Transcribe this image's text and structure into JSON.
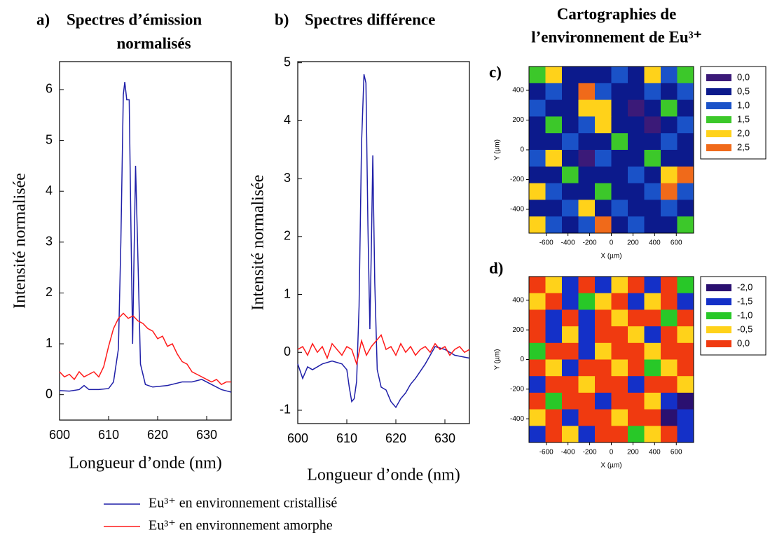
{
  "heading_lines": [
    "Cartographies de",
    "l’environnement de Eu³⁺"
  ],
  "chart_data": [
    {
      "type": "line",
      "label": "a)",
      "title_lines": [
        "Spectres d’émission",
        "normalisés"
      ],
      "xlabel": "Longueur d’onde (nm)",
      "ylabel": "Intensité normalisée",
      "xlim": [
        600,
        635
      ],
      "ylim": [
        -0.5,
        6.55
      ],
      "xticks": [
        600,
        610,
        620,
        630
      ],
      "yticks": [
        0,
        1,
        2,
        3,
        4,
        5,
        6
      ],
      "series": [
        {
          "name": "Eu³⁺ en environnement cristallisé",
          "color": "#1f1fa8",
          "x": [
            600,
            602,
            604,
            605,
            606,
            608,
            610,
            611,
            612,
            612.5,
            613,
            613.3,
            613.7,
            614.2,
            614.6,
            614.9,
            615.2,
            615.5,
            615.9,
            616.5,
            617.5,
            619,
            622,
            625,
            627,
            629,
            631,
            633,
            635
          ],
          "values": [
            0.08,
            0.07,
            0.1,
            0.18,
            0.1,
            0.1,
            0.12,
            0.25,
            0.9,
            3.0,
            5.9,
            6.15,
            5.8,
            5.8,
            3.0,
            1.0,
            2.8,
            4.5,
            3.0,
            0.6,
            0.2,
            0.15,
            0.18,
            0.25,
            0.25,
            0.3,
            0.2,
            0.1,
            0.05
          ]
        },
        {
          "name": "Eu³⁺ en environnement amorphe",
          "color": "#ff1a1a",
          "x": [
            600,
            601,
            602,
            603,
            604,
            605,
            606,
            607,
            608,
            609,
            610,
            611,
            612,
            613,
            614,
            615,
            616,
            617,
            618,
            619,
            620,
            621,
            622,
            623,
            624,
            625,
            626,
            627,
            628,
            629,
            630,
            631,
            632,
            633,
            634,
            635
          ],
          "values": [
            0.45,
            0.35,
            0.4,
            0.3,
            0.45,
            0.35,
            0.4,
            0.45,
            0.35,
            0.55,
            0.95,
            1.3,
            1.5,
            1.6,
            1.5,
            1.55,
            1.45,
            1.4,
            1.3,
            1.25,
            1.1,
            1.15,
            0.95,
            1.0,
            0.8,
            0.65,
            0.6,
            0.45,
            0.4,
            0.35,
            0.3,
            0.25,
            0.3,
            0.2,
            0.25,
            0.25
          ]
        }
      ]
    },
    {
      "type": "line",
      "label": "b)",
      "title_lines": [
        "Spectres différence"
      ],
      "xlabel": "Longueur d’onde (nm)",
      "ylabel": "Intensité normalisée",
      "xlim": [
        600,
        635
      ],
      "ylim": [
        -1.23,
        5.02
      ],
      "xticks": [
        600,
        610,
        620,
        630
      ],
      "yticks": [
        -1,
        0,
        1,
        2,
        3,
        4,
        5
      ],
      "series": [
        {
          "color": "#1f1fa8",
          "x": [
            600,
            601,
            602,
            603,
            605,
            607,
            609,
            610,
            610.5,
            611,
            611.5,
            612,
            612.5,
            613,
            613.5,
            613.9,
            614.3,
            614.7,
            615,
            615.3,
            615.7,
            616.2,
            617,
            618,
            619,
            620,
            621,
            622,
            623,
            624,
            626,
            628,
            630,
            632,
            635
          ],
          "values": [
            -0.2,
            -0.45,
            -0.25,
            -0.3,
            -0.2,
            -0.15,
            -0.2,
            -0.3,
            -0.6,
            -0.85,
            -0.8,
            -0.5,
            0.8,
            3.6,
            4.8,
            4.65,
            2.2,
            0.4,
            1.8,
            3.4,
            1.2,
            -0.3,
            -0.6,
            -0.65,
            -0.85,
            -0.95,
            -0.8,
            -0.7,
            -0.55,
            -0.45,
            -0.2,
            0.1,
            0.05,
            -0.05,
            -0.1
          ]
        },
        {
          "color": "#ff1a1a",
          "x": [
            600,
            601,
            602,
            603,
            604,
            605,
            606,
            607,
            608,
            609,
            610,
            611,
            612,
            613,
            614,
            615,
            616,
            617,
            618,
            619,
            620,
            621,
            622,
            623,
            624,
            625,
            626,
            627,
            628,
            629,
            630,
            631,
            632,
            633,
            634,
            635
          ],
          "values": [
            0.05,
            0.1,
            -0.05,
            0.15,
            0.0,
            0.1,
            -0.1,
            0.15,
            0.05,
            -0.05,
            0.1,
            0.05,
            -0.2,
            0.2,
            -0.05,
            0.1,
            0.2,
            0.3,
            0.05,
            0.1,
            -0.05,
            0.15,
            0.0,
            0.1,
            -0.05,
            0.05,
            0.1,
            0.0,
            0.15,
            0.05,
            0.1,
            -0.05,
            0.05,
            0.1,
            0.0,
            0.05
          ]
        }
      ]
    },
    {
      "type": "heatmap",
      "label": "c)",
      "xlabel": "X (µm)",
      "ylabel": "Y (µm)",
      "xlim": [
        -760,
        760
      ],
      "ylim": [
        -560,
        560
      ],
      "xticks": [
        -600,
        -400,
        -200,
        0,
        200,
        400,
        600
      ],
      "yticks": [
        -400,
        -200,
        0,
        200,
        400
      ],
      "levels": [
        {
          "value": 0,
          "label": "0,0"
        },
        {
          "value": 0.5,
          "label": "0,5"
        },
        {
          "value": 1,
          "label": "1,0"
        },
        {
          "value": 1.5,
          "label": "1,5"
        },
        {
          "value": 2,
          "label": "2,0"
        },
        {
          "value": 2.5,
          "label": "2,5"
        }
      ],
      "level_colors": [
        "#3b1a78",
        "#0c1a8c",
        "#1a52c8",
        "#3cc82a",
        "#ffd21a",
        "#f06a1a"
      ],
      "z": [
        [
          1.5,
          2,
          0.5,
          0.5,
          0.5,
          1,
          0.5,
          2,
          1,
          1.5
        ],
        [
          0.5,
          1,
          0.5,
          2.5,
          1,
          0.5,
          0.5,
          1,
          0.5,
          1
        ],
        [
          1,
          0.5,
          0.5,
          2,
          2,
          0.5,
          0,
          0.5,
          1.5,
          0.5
        ],
        [
          0.5,
          1.5,
          0.5,
          1,
          2,
          0.5,
          0.5,
          0,
          0.5,
          1
        ],
        [
          0.5,
          0.5,
          1,
          0.5,
          0.5,
          1.5,
          0.5,
          0.5,
          1,
          0.5
        ],
        [
          1,
          2,
          0.5,
          0,
          1,
          0.5,
          0.5,
          1.5,
          0.5,
          0.5
        ],
        [
          0.5,
          0.5,
          1.5,
          0.5,
          0.5,
          0.5,
          1,
          0.5,
          2,
          2.5
        ],
        [
          2,
          1,
          0.5,
          0.5,
          1.5,
          0.5,
          0.5,
          1,
          2.5,
          1
        ],
        [
          0.5,
          0.5,
          1,
          2,
          0.5,
          1,
          0.5,
          0.5,
          1,
          0.5
        ],
        [
          2,
          1,
          0.5,
          1,
          2.5,
          0.5,
          1,
          0.5,
          0.5,
          1.5
        ]
      ]
    },
    {
      "type": "heatmap",
      "label": "d)",
      "xlabel": "X (µm)",
      "ylabel": "Y (µm)",
      "xlim": [
        -760,
        760
      ],
      "ylim": [
        -560,
        560
      ],
      "xticks": [
        -600,
        -400,
        -200,
        0,
        200,
        400,
        600
      ],
      "yticks": [
        -400,
        -200,
        0,
        200,
        400
      ],
      "levels": [
        {
          "value": -2,
          "label": "-2,0"
        },
        {
          "value": -1.5,
          "label": "-1,5"
        },
        {
          "value": -1,
          "label": "-1,0"
        },
        {
          "value": -0.5,
          "label": "-0,5"
        },
        {
          "value": 0,
          "label": "0,0"
        }
      ],
      "level_colors": [
        "#2a1070",
        "#1430c8",
        "#28c828",
        "#ffd21a",
        "#f03a10"
      ],
      "z": [
        [
          0,
          -0.5,
          -1.5,
          0,
          -1.5,
          -0.5,
          0,
          -1.5,
          0,
          -1
        ],
        [
          -0.5,
          0,
          -1.5,
          -1,
          -0.5,
          0,
          -1.5,
          -0.5,
          0,
          -1.5
        ],
        [
          0,
          -1.5,
          0,
          -1.5,
          0,
          -0.5,
          0,
          0,
          -1,
          0
        ],
        [
          0,
          -1.5,
          -0.5,
          -1.5,
          0,
          0,
          -0.5,
          -1.5,
          0,
          -0.5
        ],
        [
          -1,
          0,
          0,
          -1.5,
          -0.5,
          0,
          0,
          -0.5,
          0,
          0
        ],
        [
          0,
          -0.5,
          -1.5,
          0,
          0,
          -0.5,
          0,
          -1,
          -0.5,
          0
        ],
        [
          -1.5,
          0,
          0,
          -0.5,
          0,
          0,
          -1.5,
          0,
          0,
          -0.5
        ],
        [
          0,
          -1,
          0,
          0,
          -1.5,
          0,
          0,
          -0.5,
          -1.5,
          -2
        ],
        [
          -0.5,
          0,
          -1.5,
          0,
          0,
          -0.5,
          0,
          0,
          -2,
          -1.5
        ],
        [
          -1.5,
          0,
          -0.5,
          -1.5,
          0,
          0,
          -1,
          -0.5,
          0,
          -1.5
        ]
      ]
    }
  ]
}
